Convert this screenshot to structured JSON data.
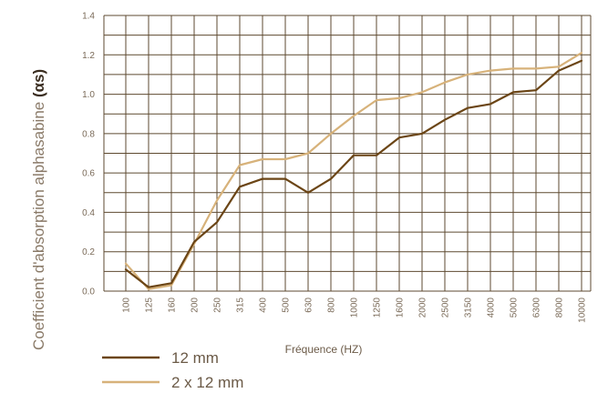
{
  "chart_data": {
    "type": "line",
    "title": "",
    "xlabel": "Fréquence (HZ)",
    "ylabel": "Coefficient d'absorption alphasabine",
    "ylabel_symbol": "(αs)",
    "ylim": [
      0,
      1.4
    ],
    "yticks": [
      "0.0",
      "0.2",
      "0.4",
      "0.6",
      "0.8",
      "1.0",
      "1.2",
      "1.4"
    ],
    "categories": [
      "100",
      "125",
      "160",
      "200",
      "250",
      "315",
      "400",
      "500",
      "630",
      "800",
      "1000",
      "1250",
      "1600",
      "2000",
      "2500",
      "3150",
      "4000",
      "5000",
      "6300",
      "8000",
      "10000"
    ],
    "grid": true,
    "legend_placement": "bottom-left",
    "series": [
      {
        "name": "12 mm",
        "color": "#6b4516",
        "values": [
          0.11,
          0.02,
          0.04,
          0.25,
          0.35,
          0.53,
          0.57,
          0.57,
          0.5,
          0.57,
          0.69,
          0.69,
          0.78,
          0.8,
          0.87,
          0.93,
          0.95,
          1.01,
          1.02,
          1.12,
          1.17
        ]
      },
      {
        "name": "2 x 12 mm",
        "color": "#d7b27a",
        "values": [
          0.14,
          0.01,
          0.03,
          0.24,
          0.46,
          0.64,
          0.67,
          0.67,
          0.7,
          0.8,
          0.89,
          0.97,
          0.98,
          1.01,
          1.06,
          1.1,
          1.12,
          1.13,
          1.13,
          1.14,
          1.21
        ]
      }
    ]
  }
}
